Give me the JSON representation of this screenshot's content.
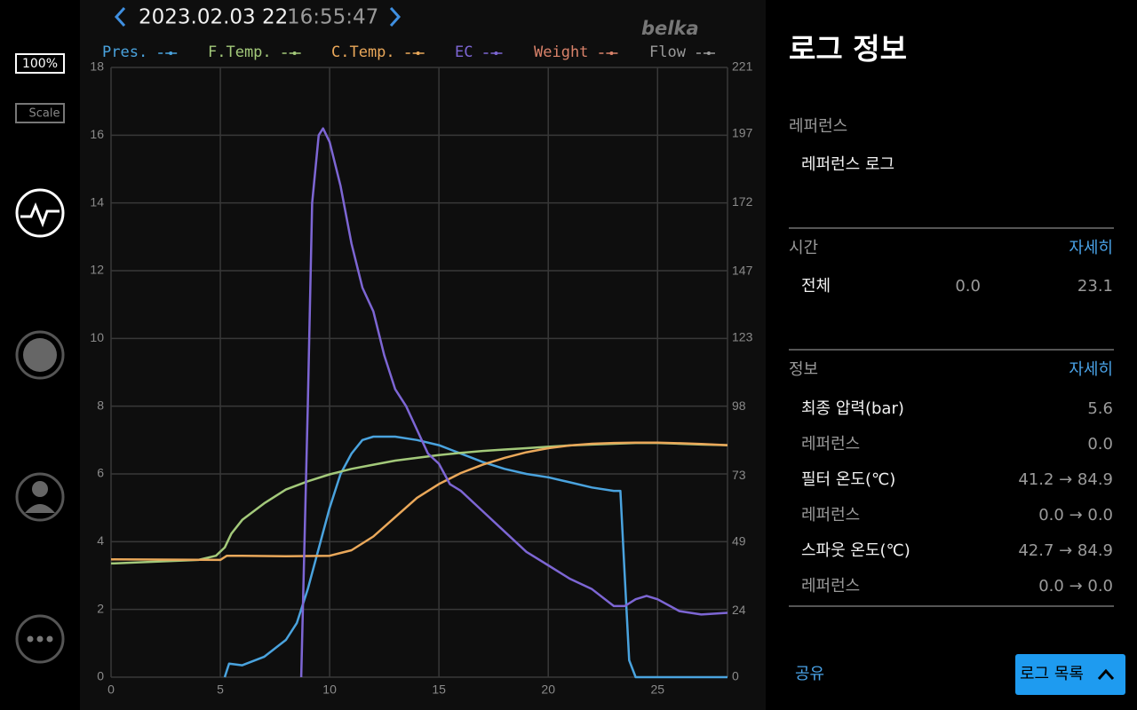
{
  "header": {
    "date": "2023.02.03 22",
    "time": "16:55:47",
    "logo": "belka"
  },
  "sidebar": {
    "battery": "100%",
    "scale": "Scale"
  },
  "chart_data": {
    "type": "line",
    "grid": true,
    "xlim": [
      0,
      28.2
    ],
    "xticks": [
      0,
      5,
      10,
      15,
      20,
      25
    ],
    "ylim": [
      0,
      18
    ],
    "yticks": [
      0,
      2,
      4,
      6,
      8,
      10,
      12,
      14,
      16,
      18
    ],
    "y2lim": [
      0,
      221
    ],
    "y2ticks": [
      0,
      24,
      49,
      73,
      98,
      123,
      147,
      172,
      197,
      221
    ],
    "series": [
      {
        "name": "Pres.",
        "color": "#4aa3de",
        "x": [
          5.2,
          5.4,
          6,
          7,
          8,
          8.5,
          9,
          9.5,
          10,
          10.5,
          11,
          11.5,
          12,
          13,
          14,
          15,
          16,
          17,
          18,
          19,
          20,
          21,
          22,
          23,
          23.3,
          23.5,
          23.7,
          24,
          28.2
        ],
        "values": [
          0,
          0.4,
          0.35,
          0.6,
          1.1,
          1.6,
          2.6,
          3.8,
          5.0,
          6.0,
          6.6,
          7.0,
          7.1,
          7.1,
          7.0,
          6.85,
          6.6,
          6.35,
          6.15,
          6.0,
          5.9,
          5.75,
          5.6,
          5.5,
          5.5,
          3.0,
          0.5,
          0,
          0
        ]
      },
      {
        "name": "F.Temp.",
        "color": "#a3c97a",
        "axis": "y2",
        "x": [
          0,
          4,
          4.8,
          5.2,
          5.5,
          6,
          7,
          8,
          9,
          10,
          11,
          12,
          13,
          14,
          15,
          16,
          17,
          18,
          19,
          20,
          21,
          22,
          23,
          24,
          25,
          26,
          27,
          28.2
        ],
        "values": [
          41.2,
          42.5,
          44,
          47,
          52,
          57,
          63,
          68,
          71,
          73.5,
          75.5,
          77,
          78.5,
          79.5,
          80.5,
          81.3,
          82,
          82.5,
          83,
          83.5,
          84,
          84.3,
          84.6,
          84.9,
          84.9,
          84.6,
          84.3,
          84.1
        ]
      },
      {
        "name": "C.Temp.",
        "color": "#eaa85a",
        "axis": "y2",
        "x": [
          0,
          5,
          5.3,
          6,
          8,
          10,
          11,
          12,
          13,
          14,
          15,
          16,
          17,
          18,
          19,
          20,
          21,
          22,
          23,
          24,
          25,
          26,
          27,
          28.2
        ],
        "values": [
          42.7,
          42.5,
          44,
          44,
          43.8,
          44,
          46,
          51,
          58,
          65,
          70,
          74,
          77,
          79.5,
          81.5,
          83,
          84,
          84.6,
          84.9,
          85,
          85,
          84.8,
          84.5,
          84.1
        ]
      },
      {
        "name": "EC",
        "color": "#7d66d4",
        "x": [
          8.7,
          9.0,
          9.2,
          9.5,
          9.7,
          10,
          10.5,
          11,
          11.5,
          12,
          12.5,
          13,
          13.5,
          14,
          14.5,
          15,
          15.5,
          16,
          17,
          18,
          19,
          20,
          21,
          22,
          23,
          23.5,
          24,
          24.5,
          25,
          26,
          27,
          28.2
        ],
        "values": [
          0,
          8,
          14,
          16.0,
          16.2,
          15.8,
          14.5,
          12.8,
          11.5,
          10.8,
          9.5,
          8.5,
          8.0,
          7.3,
          6.6,
          6.3,
          5.7,
          5.5,
          4.9,
          4.3,
          3.7,
          3.3,
          2.9,
          2.6,
          2.1,
          2.1,
          2.3,
          2.4,
          2.3,
          1.95,
          1.85,
          1.9
        ]
      },
      {
        "name": "Weight",
        "color": "#d9826a"
      },
      {
        "name": "Flow",
        "color": "#9a9a9a"
      }
    ]
  },
  "panel": {
    "title": "로그 정보",
    "reference": {
      "label": "레퍼런스",
      "value": "레퍼런스 로그"
    },
    "time": {
      "label": "시간",
      "detail": "자세히",
      "row": {
        "name": "전체",
        "start": "0.0",
        "end": "23.1"
      }
    },
    "info": {
      "label": "정보",
      "detail": "자세히",
      "rows": [
        [
          "최종 압력(bar)",
          "5.6"
        ],
        [
          "레퍼런스",
          "0.0"
        ],
        [
          "필터 온도(℃)",
          "41.2 → 84.9"
        ],
        [
          "레퍼런스",
          "0.0 → 0.0"
        ],
        [
          "스파웃 온도(℃)",
          "42.7 → 84.9"
        ],
        [
          "레퍼런스",
          "0.0 → 0.0"
        ]
      ]
    },
    "share": "공유",
    "list_button": "로그 목록"
  }
}
